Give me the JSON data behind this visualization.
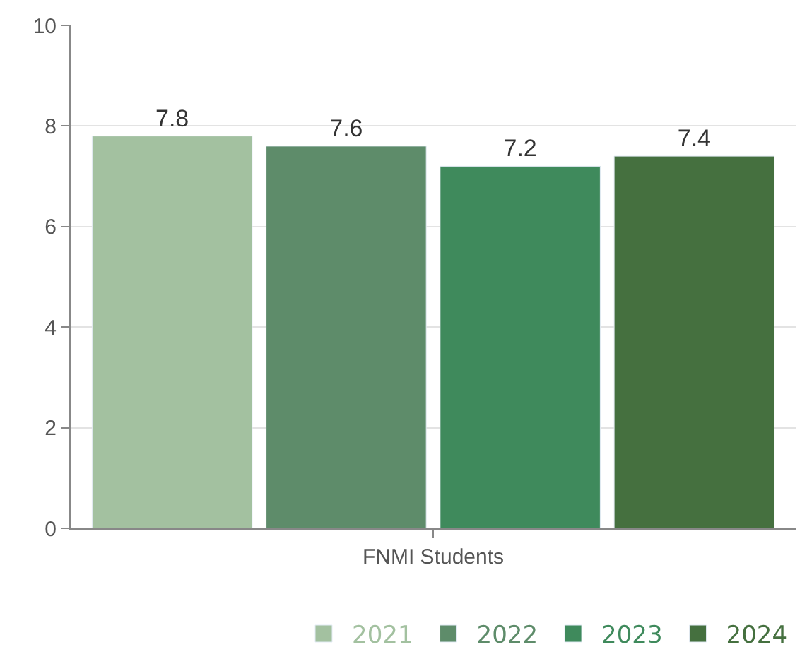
{
  "chart_data": {
    "type": "bar",
    "categories": [
      "FNMI Students"
    ],
    "xlabel": null,
    "series": [
      {
        "name": "2021",
        "color": "#a3c1a0",
        "values": [
          7.8
        ]
      },
      {
        "name": "2022",
        "color": "#5e8c6a",
        "values": [
          7.6
        ]
      },
      {
        "name": "2023",
        "color": "#3f8a5c",
        "values": [
          7.2
        ]
      },
      {
        "name": "2024",
        "color": "#45703f",
        "values": [
          7.4
        ]
      }
    ],
    "ylim": [
      0,
      10
    ],
    "yticks": [
      0,
      2,
      4,
      6,
      8,
      10
    ],
    "grid": "y",
    "legend": "bottom right",
    "data_labels": true
  }
}
